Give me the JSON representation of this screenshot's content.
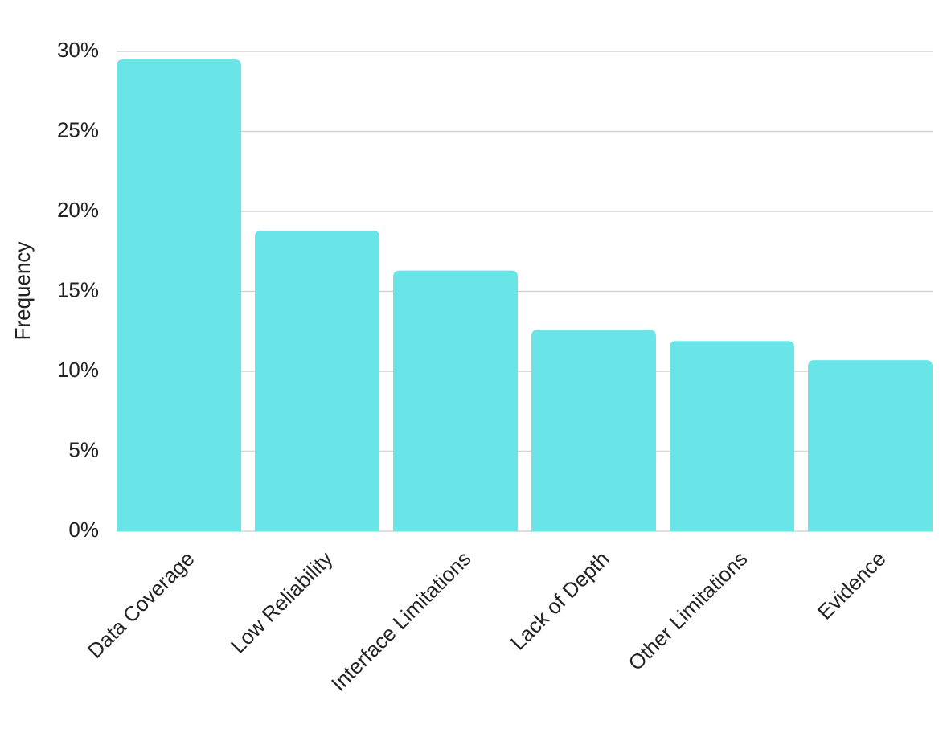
{
  "chart_data": {
    "type": "bar",
    "y_label": "Frequency",
    "categories": [
      "Data Coverage",
      "Low Reliability",
      "Interface Limitations",
      "Lack of Depth",
      "Other Limitations",
      "Evidence"
    ],
    "values": [
      29.5,
      18.8,
      16.3,
      12.6,
      11.9,
      10.7
    ],
    "color": "#6ae5e7",
    "ylim": [
      0,
      30
    ],
    "yticks": [
      {
        "value": 0,
        "label": "0%"
      },
      {
        "value": 5,
        "label": "5%"
      },
      {
        "value": 10,
        "label": "10%"
      },
      {
        "value": 15,
        "label": "15%"
      },
      {
        "value": 20,
        "label": "20%"
      },
      {
        "value": 25,
        "label": "25%"
      },
      {
        "value": 30,
        "label": "30%"
      }
    ],
    "grid": true
  }
}
